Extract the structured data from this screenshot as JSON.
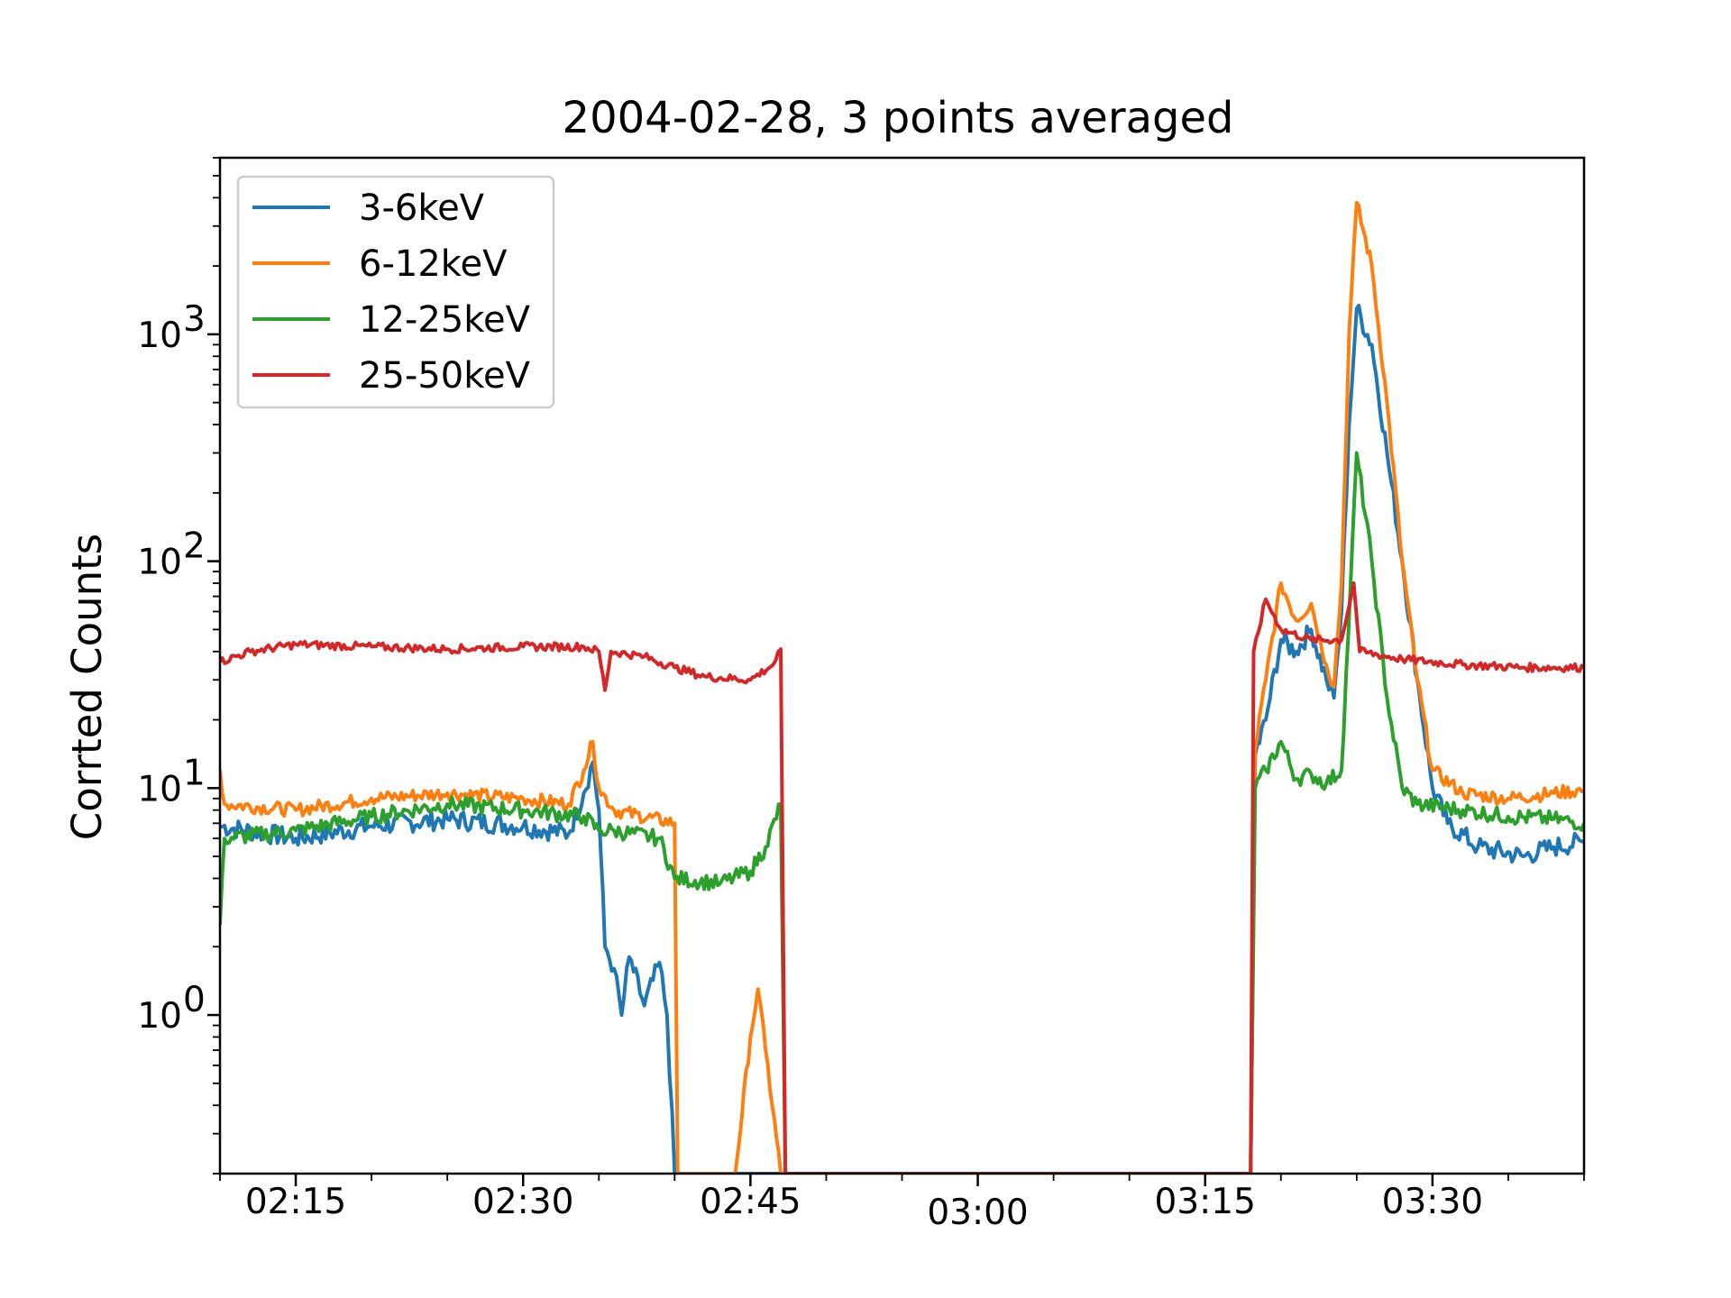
{
  "chart_data": {
    "type": "line",
    "title": "2004-02-28, 3 points averaged",
    "xlabel": "",
    "ylabel": "Corrted Counts",
    "yscale": "log",
    "ylim": [
      0.2,
      6000
    ],
    "xlim": [
      "02:10",
      "03:40"
    ],
    "x_ticks": [
      "02:15",
      "02:30",
      "02:45",
      "03:00",
      "03:15",
      "03:30"
    ],
    "y_ticks": [
      {
        "value": 1,
        "base": "10",
        "exp": "0"
      },
      {
        "value": 10,
        "base": "10",
        "exp": "1"
      },
      {
        "value": 100,
        "base": "10",
        "exp": "2"
      },
      {
        "value": 1000,
        "base": "10",
        "exp": "3"
      }
    ],
    "grid": false,
    "legend": {
      "position": "upper-left"
    },
    "series": [
      {
        "name": "3-6keV",
        "color": "#1f77b4",
        "points": [
          [
            "02:10",
            6.8
          ],
          [
            "02:15",
            6.0
          ],
          [
            "02:20",
            6.8
          ],
          [
            "02:25",
            7.3
          ],
          [
            "02:30",
            6.8
          ],
          [
            "02:33",
            6.3
          ],
          [
            "02:34",
            9.5
          ],
          [
            "02:34.6",
            13.0
          ],
          [
            "02:35",
            8.0
          ],
          [
            "02:35.4",
            2.0
          ],
          [
            "02:36",
            1.6
          ],
          [
            "02:36.5",
            1.0
          ],
          [
            "02:37",
            1.8
          ],
          [
            "02:38",
            1.1
          ],
          [
            "02:39",
            1.7
          ],
          [
            "02:39.5",
            1.0
          ],
          [
            "02:40",
            0.2
          ],
          [
            "03:18",
            0.2
          ],
          [
            "03:18.3",
            14.0
          ],
          [
            "03:19",
            20.0
          ],
          [
            "03:20",
            45.0
          ],
          [
            "03:21",
            40.0
          ],
          [
            "03:22",
            50.0
          ],
          [
            "03:23",
            30.0
          ],
          [
            "03:23.5",
            25.0
          ],
          [
            "03:24",
            60.0
          ],
          [
            "03:24.5",
            400.0
          ],
          [
            "03:25",
            1300.0
          ],
          [
            "03:26",
            900.0
          ],
          [
            "03:27",
            300.0
          ],
          [
            "03:28",
            100.0
          ],
          [
            "03:29",
            30.0
          ],
          [
            "03:30",
            10.0
          ],
          [
            "03:31",
            7.0
          ],
          [
            "03:33",
            5.5
          ],
          [
            "03:36",
            5.0
          ],
          [
            "03:38",
            5.5
          ],
          [
            "03:40",
            5.8
          ]
        ]
      },
      {
        "name": "6-12keV",
        "color": "#ff7f0e",
        "points": [
          [
            "02:10",
            12.0
          ],
          [
            "02:10.3",
            8.5
          ],
          [
            "02:15",
            8.0
          ],
          [
            "02:20",
            9.0
          ],
          [
            "02:25",
            9.5
          ],
          [
            "02:30",
            9.0
          ],
          [
            "02:33",
            8.5
          ],
          [
            "02:34",
            12.0
          ],
          [
            "02:34.6",
            16.0
          ],
          [
            "02:35",
            10.0
          ],
          [
            "02:36",
            8.0
          ],
          [
            "02:40",
            7.0
          ],
          [
            "02:40.2",
            0.2
          ],
          [
            "02:43",
            0.2
          ],
          [
            "02:44",
            0.2
          ],
          [
            "02:45",
            0.8
          ],
          [
            "02:45.5",
            1.3
          ],
          [
            "02:46",
            0.7
          ],
          [
            "02:47",
            0.2
          ],
          [
            "03:18",
            0.2
          ],
          [
            "03:18.3",
            15.0
          ],
          [
            "03:19",
            30.0
          ],
          [
            "03:20",
            80.0
          ],
          [
            "03:21",
            55.0
          ],
          [
            "03:22",
            65.0
          ],
          [
            "03:23",
            35.0
          ],
          [
            "03:23.5",
            28.0
          ],
          [
            "03:24",
            80.0
          ],
          [
            "03:24.5",
            1000.0
          ],
          [
            "03:25",
            3800.0
          ],
          [
            "03:26",
            2000.0
          ],
          [
            "03:27",
            500.0
          ],
          [
            "03:28",
            100.0
          ],
          [
            "03:29",
            30.0
          ],
          [
            "03:30",
            12.0
          ],
          [
            "03:32",
            9.5
          ],
          [
            "03:35",
            9.0
          ],
          [
            "03:38",
            9.5
          ],
          [
            "03:40",
            9.8
          ]
        ]
      },
      {
        "name": "12-25keV",
        "color": "#2ca02c",
        "points": [
          [
            "02:10",
            2.5
          ],
          [
            "02:10.3",
            6.0
          ],
          [
            "02:15",
            6.5
          ],
          [
            "02:20",
            7.5
          ],
          [
            "02:25",
            8.5
          ],
          [
            "02:30",
            8.0
          ],
          [
            "02:34",
            7.5
          ],
          [
            "02:35",
            6.5
          ],
          [
            "02:36",
            6.5
          ],
          [
            "02:39",
            6.0
          ],
          [
            "02:40",
            4.0
          ],
          [
            "02:43",
            3.8
          ],
          [
            "02:45",
            4.3
          ],
          [
            "02:46",
            5.5
          ],
          [
            "02:47",
            8.5
          ],
          [
            "02:47.3",
            0.2
          ],
          [
            "03:18",
            0.2
          ],
          [
            "03:18.3",
            10.0
          ],
          [
            "03:19",
            12.0
          ],
          [
            "03:20",
            16.0
          ],
          [
            "03:21",
            11.0
          ],
          [
            "03:22",
            11.5
          ],
          [
            "03:23",
            10.5
          ],
          [
            "03:24",
            12.0
          ],
          [
            "03:24.6",
            80.0
          ],
          [
            "03:25",
            300.0
          ],
          [
            "03:26",
            100.0
          ],
          [
            "03:27",
            25.0
          ],
          [
            "03:28",
            10.0
          ],
          [
            "03:29",
            8.5
          ],
          [
            "03:32",
            8.0
          ],
          [
            "03:35",
            7.5
          ],
          [
            "03:38",
            7.3
          ],
          [
            "03:40",
            7.0
          ]
        ]
      },
      {
        "name": "25-50keV",
        "color": "#d62728",
        "points": [
          [
            "02:10",
            36.0
          ],
          [
            "02:12",
            40.0
          ],
          [
            "02:15",
            43.0
          ],
          [
            "02:20",
            42.0
          ],
          [
            "02:25",
            41.0
          ],
          [
            "02:30",
            42.0
          ],
          [
            "02:34",
            42.0
          ],
          [
            "02:35",
            40.0
          ],
          [
            "02:35.4",
            27.0
          ],
          [
            "02:35.8",
            40.0
          ],
          [
            "02:38",
            38.0
          ],
          [
            "02:40",
            34.0
          ],
          [
            "02:42",
            31.0
          ],
          [
            "02:45",
            30.0
          ],
          [
            "02:46.5",
            35.0
          ],
          [
            "02:47",
            41.0
          ],
          [
            "02:47.3",
            0.2
          ],
          [
            "03:18",
            0.2
          ],
          [
            "03:18.2",
            40.0
          ],
          [
            "03:19",
            68.0
          ],
          [
            "03:20",
            50.0
          ],
          [
            "03:22",
            45.0
          ],
          [
            "03:24",
            45.0
          ],
          [
            "03:24.8",
            80.0
          ],
          [
            "03:25.2",
            40.0
          ],
          [
            "03:28",
            37.0
          ],
          [
            "03:32",
            35.0
          ],
          [
            "03:36",
            34.0
          ],
          [
            "03:40",
            34.0
          ]
        ]
      }
    ]
  }
}
